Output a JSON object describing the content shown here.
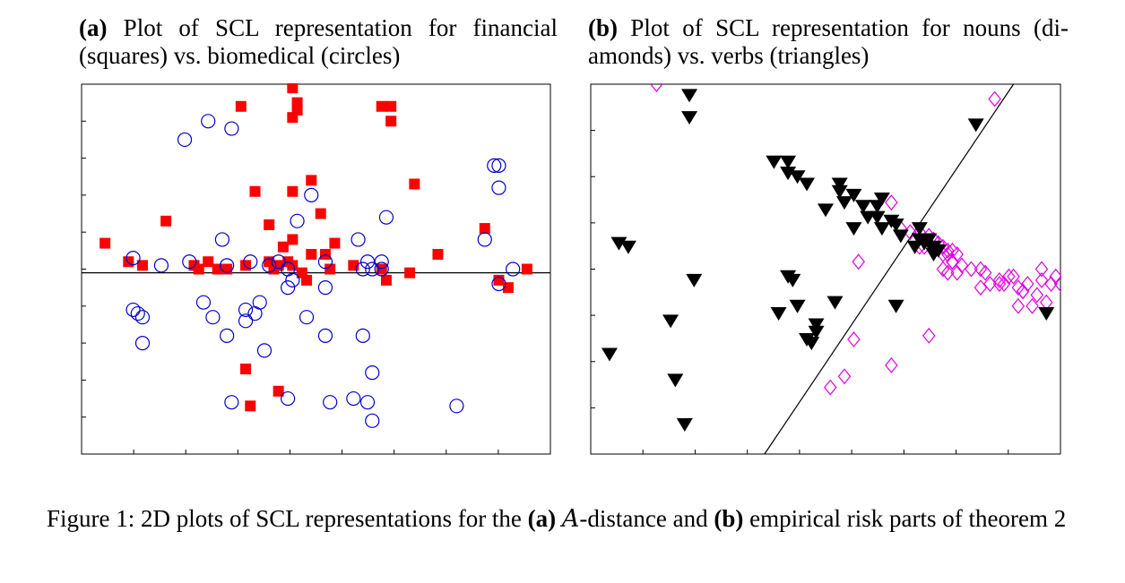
{
  "subcaption_a": {
    "tag": "(a)",
    "text": "Plot of SCL representation for financial (squares) vs. biomedical (circles)"
  },
  "subcaption_b": {
    "tag": "(b)",
    "text": "Plot of SCL representation for nouns (di-amonds) vs. verbs (triangles)"
  },
  "figure_caption": {
    "prefix": "Figure 1:  2D plots of SCL representations for the ",
    "tag_a": "(a)",
    "script_a": "A",
    "mid": "-distance and ",
    "tag_b": "(b)",
    "suffix": " empirical risk parts of theorem 2"
  },
  "colors": {
    "square": "#ff0000",
    "circle": "#0000cc",
    "triangle": "#000000",
    "diamond": "#e000e0",
    "line": "#000000"
  },
  "chart_data": [
    {
      "type": "scatter",
      "title": "(a) Plot of SCL representation for financial (squares) vs. biomedical (circles)",
      "xlim": [
        0,
        100
      ],
      "ylim": [
        0,
        100
      ],
      "xlabel": "",
      "ylabel": "",
      "grid": false,
      "separator": {
        "kind": "horizontal",
        "y": 49
      },
      "series": [
        {
          "name": "financial (squares)",
          "marker": "square",
          "points": [
            [
              45,
              99
            ],
            [
              34,
              94
            ],
            [
              46,
              95
            ],
            [
              46,
              93
            ],
            [
              45,
              91
            ],
            [
              64,
              94
            ],
            [
              66,
              94
            ],
            [
              66,
              90
            ],
            [
              49,
              74
            ],
            [
              37,
              71
            ],
            [
              45,
              71
            ],
            [
              71,
              73
            ],
            [
              18,
              63
            ],
            [
              51,
              65
            ],
            [
              40,
              62
            ],
            [
              86,
              61
            ],
            [
              5,
              57
            ],
            [
              43,
              56
            ],
            [
              45,
              58
            ],
            [
              54,
              57
            ],
            [
              52,
              54
            ],
            [
              49,
              54
            ],
            [
              27,
              52
            ],
            [
              24,
              51
            ],
            [
              35,
              51
            ],
            [
              42,
              51
            ],
            [
              45,
              51
            ],
            [
              47,
              49
            ],
            [
              13,
              51
            ],
            [
              10,
              52
            ],
            [
              29,
              50
            ],
            [
              25,
              50
            ],
            [
              53,
              50
            ],
            [
              41,
              50
            ],
            [
              44,
              52
            ],
            [
              40,
              52
            ],
            [
              31,
              50
            ],
            [
              58,
              51
            ],
            [
              64,
              50
            ],
            [
              70,
              49
            ],
            [
              76,
              54
            ],
            [
              89,
              47
            ],
            [
              91,
              45
            ],
            [
              95,
              50
            ],
            [
              65,
              47
            ],
            [
              48,
              47
            ],
            [
              35,
              23
            ],
            [
              42,
              17
            ],
            [
              36,
              13
            ]
          ]
        },
        {
          "name": "biomedical (circles)",
          "marker": "circle",
          "points": [
            [
              27,
              90
            ],
            [
              22,
              85
            ],
            [
              32,
              88
            ],
            [
              88,
              78
            ],
            [
              89,
              78
            ],
            [
              89,
              72
            ],
            [
              49,
              70
            ],
            [
              65,
              64
            ],
            [
              46,
              63
            ],
            [
              30,
              58
            ],
            [
              59,
              58
            ],
            [
              86,
              58
            ],
            [
              11,
              53
            ],
            [
              23,
              52
            ],
            [
              31,
              51
            ],
            [
              36,
              52
            ],
            [
              40,
              51
            ],
            [
              42,
              52
            ],
            [
              52,
              52
            ],
            [
              17,
              51
            ],
            [
              44,
              50
            ],
            [
              60,
              50
            ],
            [
              62,
              50
            ],
            [
              64,
              50
            ],
            [
              61,
              52
            ],
            [
              64,
              52
            ],
            [
              92,
              50
            ],
            [
              45,
              47
            ],
            [
              26,
              41
            ],
            [
              44,
              45
            ],
            [
              52,
              45
            ],
            [
              89,
              46
            ],
            [
              38,
              41
            ],
            [
              35,
              39
            ],
            [
              37,
              38
            ],
            [
              35,
              36
            ],
            [
              11,
              39
            ],
            [
              12,
              38
            ],
            [
              13,
              37
            ],
            [
              28,
              37
            ],
            [
              48,
              37
            ],
            [
              31,
              32
            ],
            [
              13,
              30
            ],
            [
              52,
              32
            ],
            [
              60,
              32
            ],
            [
              39,
              28
            ],
            [
              62,
              22
            ],
            [
              44,
              15
            ],
            [
              53,
              14
            ],
            [
              58,
              15
            ],
            [
              61,
              14
            ],
            [
              80,
              13
            ],
            [
              32,
              14
            ],
            [
              62,
              9
            ]
          ]
        }
      ]
    },
    {
      "type": "scatter",
      "title": "(b) Plot of SCL representation for nouns (diamonds) vs. verbs (triangles)",
      "xlim": [
        0,
        100
      ],
      "ylim": [
        0,
        100
      ],
      "xlabel": "",
      "ylabel": "",
      "grid": false,
      "separator": {
        "kind": "line",
        "from": [
          37,
          0
        ],
        "to": [
          90,
          100
        ]
      },
      "series": [
        {
          "name": "nouns (diamonds)",
          "marker": "diamond",
          "points": [
            [
              14,
              100
            ],
            [
              86,
              96
            ],
            [
              64,
              68
            ],
            [
              68,
              60
            ],
            [
              66,
              61
            ],
            [
              70,
              60
            ],
            [
              72,
              59
            ],
            [
              73,
              58
            ],
            [
              74,
              57
            ],
            [
              75,
              56
            ],
            [
              76,
              55
            ],
            [
              77,
              55
            ],
            [
              70,
              56
            ],
            [
              72,
              57
            ],
            [
              71,
              56
            ],
            [
              75,
              54
            ],
            [
              76,
              54
            ],
            [
              78,
              54
            ],
            [
              77,
              52
            ],
            [
              79,
              51
            ],
            [
              75,
              50
            ],
            [
              77,
              52
            ],
            [
              81,
              50
            ],
            [
              76,
              49
            ],
            [
              78,
              49
            ],
            [
              57,
              52
            ],
            [
              83,
              50
            ],
            [
              84,
              49
            ],
            [
              90,
              48
            ],
            [
              85,
              46
            ],
            [
              87,
              46
            ],
            [
              83,
              45
            ],
            [
              87,
              47
            ],
            [
              89,
              48
            ],
            [
              88,
              46
            ],
            [
              91,
              45
            ],
            [
              92,
              44
            ],
            [
              95,
              43
            ],
            [
              92,
              44
            ],
            [
              93,
              46
            ],
            [
              96,
              47
            ],
            [
              98,
              46
            ],
            [
              100,
              46
            ],
            [
              96,
              50
            ],
            [
              99,
              48
            ],
            [
              91,
              40
            ],
            [
              97,
              41
            ],
            [
              94,
              40
            ],
            [
              56,
              31
            ],
            [
              72,
              32
            ],
            [
              64,
              24
            ],
            [
              54,
              21
            ],
            [
              51,
              18
            ]
          ]
        },
        {
          "name": "verbs (triangles)",
          "marker": "triangle",
          "points": [
            [
              21,
              97
            ],
            [
              21,
              91
            ],
            [
              82,
              89
            ],
            [
              39,
              79
            ],
            [
              42,
              79
            ],
            [
              42,
              76
            ],
            [
              44,
              75
            ],
            [
              46,
              73
            ],
            [
              53,
              73
            ],
            [
              53,
              71
            ],
            [
              56,
              70
            ],
            [
              54,
              68
            ],
            [
              62,
              69
            ],
            [
              50,
              66
            ],
            [
              61,
              67
            ],
            [
              58,
              67
            ],
            [
              59,
              64
            ],
            [
              61,
              64
            ],
            [
              64,
              63
            ],
            [
              62,
              61
            ],
            [
              65,
              62
            ],
            [
              70,
              61
            ],
            [
              66,
              59
            ],
            [
              70,
              58
            ],
            [
              71,
              57
            ],
            [
              69,
              56
            ],
            [
              72,
              58
            ],
            [
              73,
              56
            ],
            [
              73,
              55
            ],
            [
              74,
              55
            ],
            [
              73,
              54
            ],
            [
              56,
              61
            ],
            [
              6,
              57
            ],
            [
              8,
              56
            ],
            [
              42,
              48
            ],
            [
              43,
              47
            ],
            [
              22,
              47
            ],
            [
              44,
              40
            ],
            [
              52,
              41
            ],
            [
              65,
              40
            ],
            [
              40,
              38
            ],
            [
              48,
              35
            ],
            [
              17,
              36
            ],
            [
              48,
              33
            ],
            [
              46,
              31
            ],
            [
              47,
              30
            ],
            [
              97,
              38
            ],
            [
              4,
              27
            ],
            [
              18,
              20
            ],
            [
              20,
              8
            ]
          ]
        }
      ]
    }
  ]
}
